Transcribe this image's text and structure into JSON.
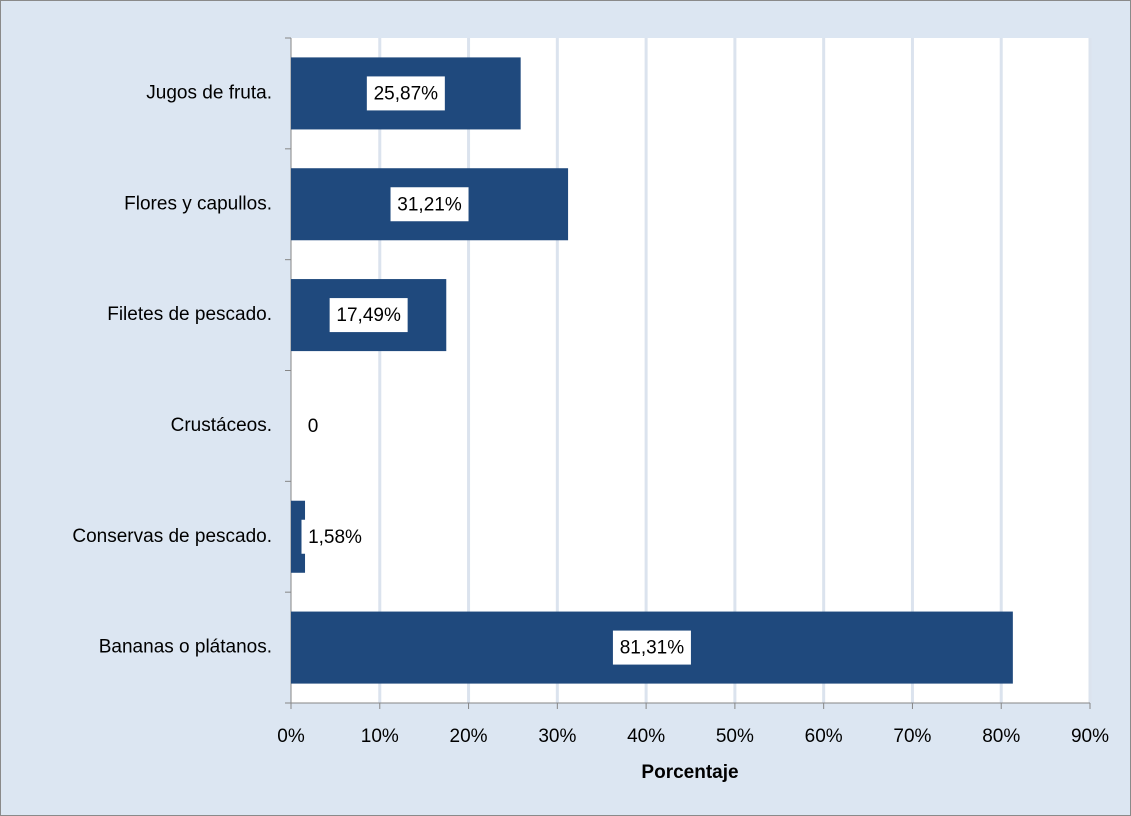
{
  "chart_data": {
    "type": "bar",
    "orientation": "horizontal",
    "categories": [
      "Jugos de fruta.",
      "Flores y capullos.",
      "Filetes de pescado.",
      "Crustáceos.",
      "Conservas de pescado.",
      "Bananas o plátanos."
    ],
    "values": [
      25.87,
      31.21,
      17.49,
      0,
      1.58,
      81.31
    ],
    "value_labels": [
      "25,87%",
      "31,21%",
      "17,49%",
      "0",
      "1,58%",
      "81,31%"
    ],
    "color": "#1f497d",
    "x_label": "Porcentaje",
    "xlim": [
      0,
      90
    ],
    "xticks": [
      {
        "value": 0,
        "label": "0%"
      },
      {
        "value": 10,
        "label": "10%"
      },
      {
        "value": 20,
        "label": "20%"
      },
      {
        "value": 30,
        "label": "30%"
      },
      {
        "value": 40,
        "label": "40%"
      },
      {
        "value": 50,
        "label": "50%"
      },
      {
        "value": 60,
        "label": "60%"
      },
      {
        "value": 70,
        "label": "70%"
      },
      {
        "value": 80,
        "label": "80%"
      },
      {
        "value": 90,
        "label": "90%"
      }
    ],
    "grid": true
  }
}
